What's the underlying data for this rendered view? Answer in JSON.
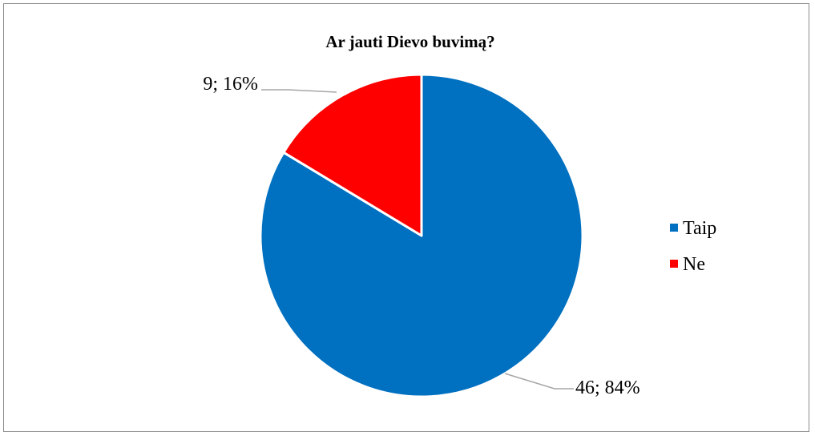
{
  "chart_data": {
    "type": "pie",
    "title": "Ar jauti Dievo buvimą?",
    "categories": [
      "Taip",
      "Ne"
    ],
    "values": [
      46,
      9
    ],
    "percentages": [
      84,
      16
    ],
    "data_labels": [
      "46; 84%",
      "9; 16%"
    ],
    "colors": [
      "#0070C0",
      "#FF0000"
    ],
    "legend": {
      "position": "right",
      "entries": [
        "Taip",
        "Ne"
      ]
    }
  }
}
